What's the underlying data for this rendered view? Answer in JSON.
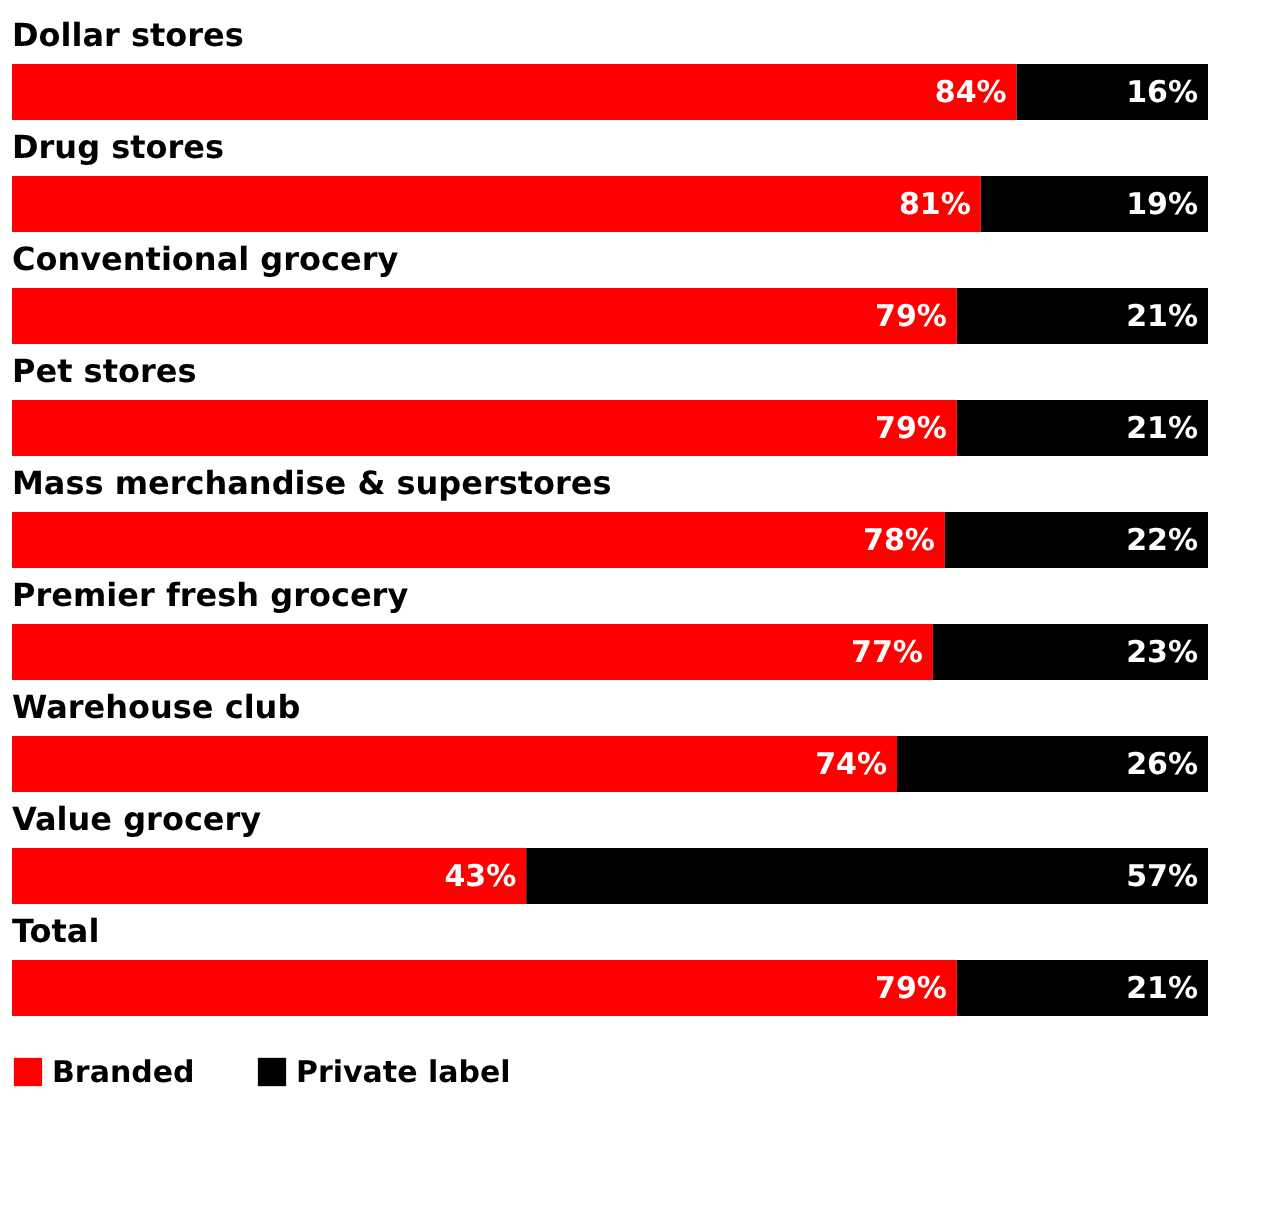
{
  "chart_data": {
    "type": "bar",
    "orientation": "horizontal",
    "stacked": true,
    "categories": [
      "Dollar stores",
      "Drug stores",
      "Conventional grocery",
      "Pet stores",
      "Mass merchandise & superstores",
      "Premier fresh grocery",
      "Warehouse club",
      "Value grocery",
      "Total"
    ],
    "series": [
      {
        "name": "Branded",
        "color": "#ff0000",
        "values": [
          84,
          81,
          79,
          79,
          78,
          77,
          74,
          43,
          79
        ],
        "value_labels": [
          "84%",
          "81%",
          "79%",
          "79%",
          "78%",
          "77%",
          "74%",
          "43%",
          "79%"
        ]
      },
      {
        "name": "Private label",
        "color": "#000000",
        "values": [
          16,
          19,
          21,
          21,
          22,
          23,
          26,
          57,
          21
        ],
        "value_labels": [
          "16%",
          "19%",
          "21%",
          "21%",
          "22%",
          "23%",
          "26%",
          "57%",
          "21%"
        ]
      }
    ],
    "xlim": [
      0,
      100
    ],
    "tick_labels": false,
    "legend": "bottom"
  }
}
